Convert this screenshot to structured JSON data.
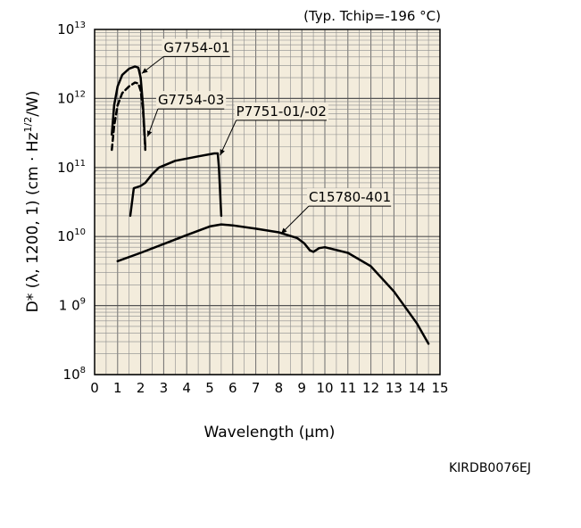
{
  "chart_data": {
    "type": "line",
    "condition_note": "(Typ. Tchip=-196 °C)",
    "xlabel": "Wavelength (μm)",
    "ylabel": "D* (λ, 1200, 1) (cm · Hz1/2/W)",
    "ylabel_parts": {
      "main": "D* (λ, 1200, 1) (cm · Hz",
      "sup": "1/2",
      "tail": "/W)"
    },
    "xlim": [
      0,
      15
    ],
    "ylim": [
      100000000,
      10000000000000
    ],
    "y_scale": "log",
    "grid": true,
    "x_ticks": [
      "0",
      "1",
      "2",
      "3",
      "4",
      "5",
      "6",
      "7",
      "8",
      "9",
      "10",
      "11",
      "12",
      "13",
      "14",
      "15"
    ],
    "y_ticks": [
      {
        "value": 100000000,
        "base": "10",
        "exp": "8"
      },
      {
        "value": 1000000000,
        "base": "1 0",
        "exp": "9"
      },
      {
        "value": 10000000000,
        "base": "10",
        "exp": "10"
      },
      {
        "value": 100000000000,
        "base": "10",
        "exp": "11"
      },
      {
        "value": 1000000000000,
        "base": "10",
        "exp": "12"
      },
      {
        "value": 10000000000000,
        "base": "10",
        "exp": "13"
      }
    ],
    "series": [
      {
        "name": "G7754-01",
        "style": "solid",
        "label_at": {
          "x": 3.0,
          "y": 4700000000000
        },
        "leader_to": {
          "x": 2.05,
          "y": 2300000000000
        },
        "points": [
          [
            0.75,
            300000000000
          ],
          [
            0.85,
            800000000000
          ],
          [
            1.0,
            1500000000000
          ],
          [
            1.2,
            2200000000000
          ],
          [
            1.5,
            2700000000000
          ],
          [
            1.75,
            2900000000000
          ],
          [
            1.9,
            2800000000000
          ],
          [
            2.0,
            2000000000000
          ],
          [
            2.1,
            800000000000
          ],
          [
            2.2,
            200000000000
          ]
        ]
      },
      {
        "name": "G7754-03",
        "style": "dashed",
        "label_at": {
          "x": 2.75,
          "y": 820000000000
        },
        "leader_to": {
          "x": 2.3,
          "y": 280000000000
        },
        "points": [
          [
            0.75,
            180000000000
          ],
          [
            0.85,
            400000000000
          ],
          [
            1.0,
            800000000000
          ],
          [
            1.2,
            1200000000000
          ],
          [
            1.5,
            1500000000000
          ],
          [
            1.75,
            1700000000000
          ],
          [
            1.9,
            1650000000000
          ],
          [
            2.0,
            1300000000000
          ],
          [
            2.1,
            700000000000
          ],
          [
            2.2,
            180000000000
          ]
        ]
      },
      {
        "name": "P7751-01/-02",
        "style": "solid",
        "label_at": {
          "x": 6.15,
          "y": 560000000000
        },
        "leader_to": {
          "x": 5.45,
          "y": 150000000000
        },
        "points": [
          [
            1.55,
            20000000000
          ],
          [
            1.7,
            50000000000
          ],
          [
            2.0,
            54000000000
          ],
          [
            2.2,
            60000000000
          ],
          [
            2.5,
            80000000000
          ],
          [
            2.8,
            100000000000
          ],
          [
            3.5,
            125000000000
          ],
          [
            4.5,
            145000000000
          ],
          [
            5.2,
            160000000000
          ],
          [
            5.35,
            160000000000
          ],
          [
            5.4,
            100000000000
          ],
          [
            5.5,
            20000000000
          ]
        ]
      },
      {
        "name": "C15780-401",
        "style": "solid",
        "label_at": {
          "x": 9.3,
          "y": 32000000000
        },
        "leader_to": {
          "x": 8.1,
          "y": 11000000000
        },
        "points": [
          [
            1.0,
            4400000000
          ],
          [
            2.0,
            5800000000
          ],
          [
            3.0,
            7800000000
          ],
          [
            4.0,
            10500000000
          ],
          [
            5.0,
            14000000000
          ],
          [
            5.5,
            15000000000
          ],
          [
            6.0,
            14500000000
          ],
          [
            7.0,
            13000000000
          ],
          [
            8.0,
            11500000000
          ],
          [
            8.8,
            9500000000
          ],
          [
            9.1,
            8000000000
          ],
          [
            9.35,
            6300000000
          ],
          [
            9.5,
            6000000000
          ],
          [
            9.75,
            6800000000
          ],
          [
            10.0,
            7000000000
          ],
          [
            11.0,
            5800000000
          ],
          [
            12.0,
            3700000000
          ],
          [
            13.0,
            1600000000
          ],
          [
            14.0,
            550000000
          ],
          [
            14.5,
            280000000
          ]
        ]
      }
    ]
  },
  "footer_code": "KIRDB0076EJ",
  "colors": {
    "line": "#000000",
    "grid": "#8c8c8c",
    "plot_bg": "#f3ecdc"
  }
}
